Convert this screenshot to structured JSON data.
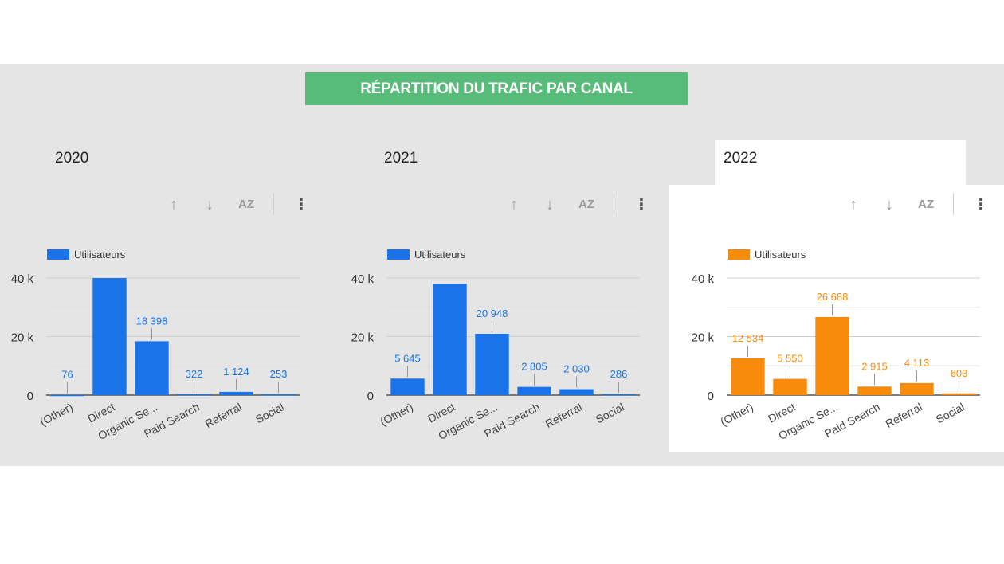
{
  "header": {
    "title": "RÉPARTITION DU TRAFIC PAR CANAL"
  },
  "colors": {
    "blue": "#1a73e8",
    "orange": "#f98b0c",
    "title_bg": "#57bb79",
    "band": "#e5e5e5"
  },
  "toolbar": {
    "up_icon": "arrow-up-icon",
    "down_icon": "arrow-down-icon",
    "sort_icon": "sort-az-icon",
    "menu_icon": "more-vert-icon",
    "sort_label": "AZ"
  },
  "panels": [
    {
      "year": "2020"
    },
    {
      "year": "2021"
    },
    {
      "year": "2022"
    }
  ],
  "chart_data": [
    {
      "type": "bar",
      "title": "2020",
      "categories": [
        "(Other)",
        "Direct",
        "Organic Se...",
        "Paid Search",
        "Referral",
        "Social"
      ],
      "series": [
        {
          "name": "Utilisateurs",
          "values": [
            76,
            40000,
            18398,
            322,
            1124,
            253
          ]
        }
      ],
      "data_labels": [
        "76",
        "",
        "18 398",
        "322",
        "1 124",
        "253"
      ],
      "yticks": [
        "0",
        "20 k",
        "40 k"
      ],
      "ylim": [
        0,
        40000
      ],
      "color": "#1a73e8",
      "legend": "top-left",
      "grid": true
    },
    {
      "type": "bar",
      "title": "2021",
      "categories": [
        "(Other)",
        "Direct",
        "Organic Se...",
        "Paid Search",
        "Referral",
        "Social"
      ],
      "series": [
        {
          "name": "Utilisateurs",
          "values": [
            5645,
            38000,
            20948,
            2805,
            2030,
            286
          ]
        }
      ],
      "data_labels": [
        "5 645",
        "",
        "20 948",
        "2 805",
        "2 030",
        "286"
      ],
      "yticks": [
        "0",
        "20 k",
        "40 k"
      ],
      "ylim": [
        0,
        40000
      ],
      "color": "#1a73e8",
      "legend": "top-left",
      "grid": true
    },
    {
      "type": "bar",
      "title": "2022",
      "categories": [
        "(Other)",
        "Direct",
        "Organic Se...",
        "Paid Search",
        "Referral",
        "Social"
      ],
      "series": [
        {
          "name": "Utilisateurs",
          "values": [
            12534,
            5550,
            26688,
            2915,
            4113,
            603
          ]
        }
      ],
      "data_labels": [
        "12 534",
        "5 550",
        "26 688",
        "2 915",
        "4 113",
        "603"
      ],
      "yticks": [
        "0",
        "20 k",
        "40 k"
      ],
      "ylim": [
        0,
        40000
      ],
      "color": "#f98b0c",
      "legend": "top-left",
      "grid": true
    }
  ]
}
